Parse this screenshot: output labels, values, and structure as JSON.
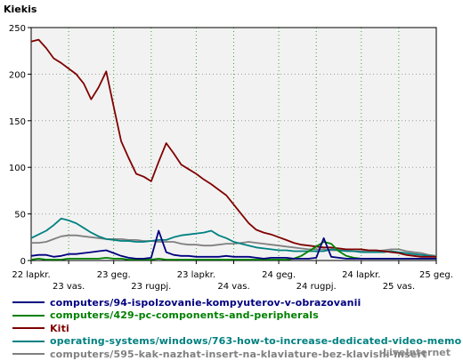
{
  "chart_data": {
    "type": "line",
    "ylabel": "Kiekis",
    "ylim": [
      0,
      250
    ],
    "yticks": [
      0,
      50,
      100,
      150,
      200,
      250
    ],
    "grid": true,
    "legend_position": "bottom",
    "n_points": 55,
    "xticks_top": [
      {
        "index": 0,
        "label": "22 lapkr."
      },
      {
        "index": 11,
        "label": "23 geg."
      },
      {
        "index": 22,
        "label": "23 lapkr."
      },
      {
        "index": 33,
        "label": "24 geg."
      },
      {
        "index": 44,
        "label": "24 lapkr."
      },
      {
        "index": 54,
        "label": "25 geg."
      }
    ],
    "xticks_bottom": [
      {
        "index": 5,
        "label": "23 vas."
      },
      {
        "index": 16,
        "label": "23 rugpj."
      },
      {
        "index": 27,
        "label": "24 vas."
      },
      {
        "index": 38,
        "label": "24 rugpj."
      },
      {
        "index": 49,
        "label": "25 vas."
      }
    ],
    "series": [
      {
        "name": "computers/94-ispolzovanie-kompyuterov-v-obrazovanii",
        "color": "#000080",
        "values": [
          5,
          6,
          6,
          4,
          5,
          7,
          7,
          8,
          9,
          10,
          11,
          8,
          5,
          3,
          2,
          2,
          3,
          32,
          9,
          6,
          5,
          5,
          4,
          4,
          4,
          4,
          5,
          4,
          4,
          4,
          3,
          2,
          3,
          3,
          3,
          2,
          2,
          2,
          3,
          24,
          4,
          3,
          2,
          2,
          2,
          2,
          2,
          2,
          2,
          2,
          2,
          2,
          2,
          2,
          2
        ]
      },
      {
        "name": "computers/429-pc-components-and-peripherals",
        "color": "#008000",
        "values": [
          1,
          2,
          1,
          1,
          1,
          2,
          2,
          2,
          2,
          2,
          3,
          2,
          2,
          1,
          1,
          1,
          1,
          2,
          1,
          1,
          1,
          1,
          1,
          1,
          1,
          1,
          1,
          1,
          1,
          1,
          1,
          1,
          1,
          1,
          1,
          2,
          5,
          10,
          15,
          20,
          18,
          10,
          5,
          3,
          2,
          2,
          2,
          2,
          2,
          2,
          2,
          2,
          2,
          2,
          2
        ]
      },
      {
        "name": "Kiti",
        "color": "#800000",
        "values": [
          235,
          237,
          228,
          217,
          212,
          206,
          200,
          190,
          173,
          186,
          203,
          165,
          128,
          110,
          93,
          90,
          85,
          106,
          126,
          115,
          103,
          98,
          93,
          87,
          82,
          76,
          70,
          60,
          50,
          40,
          33,
          30,
          28,
          25,
          22,
          19,
          17,
          16,
          15,
          14,
          14,
          13,
          12,
          12,
          12,
          11,
          11,
          10,
          9,
          8,
          6,
          5,
          4,
          4,
          4
        ]
      },
      {
        "name": "operating-systems/windows/763-how-to-increase-dedicated-video-memo",
        "color": "#008080",
        "values": [
          24,
          28,
          32,
          38,
          45,
          43,
          40,
          35,
          30,
          26,
          23,
          22,
          21,
          21,
          20,
          20,
          21,
          22,
          22,
          25,
          27,
          28,
          29,
          30,
          32,
          27,
          24,
          20,
          18,
          16,
          14,
          13,
          12,
          11,
          11,
          10,
          10,
          10,
          10,
          10,
          12,
          11,
          10,
          10,
          9,
          9,
          9,
          9,
          10,
          9,
          8,
          7,
          6,
          5,
          4
        ]
      },
      {
        "name": "computers/595-kak-nazhat-insert-na-klaviature-bez-klavishi-insert",
        "color": "#808080",
        "values": [
          19,
          19,
          20,
          23,
          26,
          27,
          27,
          26,
          25,
          24,
          23,
          23,
          23,
          22,
          22,
          21,
          21,
          20,
          20,
          20,
          18,
          17,
          17,
          16,
          16,
          17,
          18,
          18,
          19,
          20,
          19,
          18,
          17,
          16,
          15,
          14,
          13,
          12,
          12,
          12,
          11,
          11,
          11,
          10,
          10,
          10,
          10,
          11,
          12,
          12,
          10,
          9,
          8,
          6,
          5
        ]
      }
    ]
  },
  "watermark": "LiveInternet"
}
